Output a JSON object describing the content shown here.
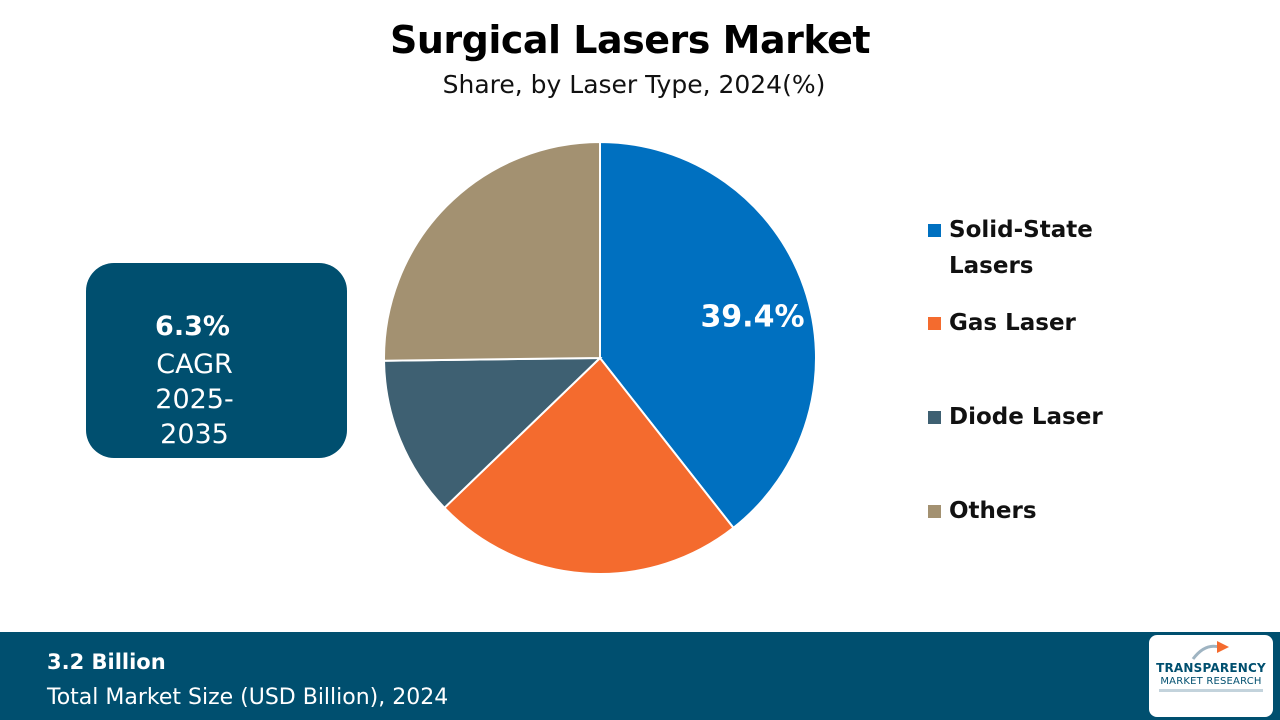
{
  "title": "Surgical Lasers Market",
  "subtitle": "Share, by Laser Type, 2024(%)",
  "cagr": {
    "value": "6.3%",
    "label_line1": "CAGR",
    "label_line2": "2025-",
    "label_line3": "2035"
  },
  "footer": {
    "value": "3.2 Billion",
    "label": "Total Market Size (USD Billion), 2024"
  },
  "logo": {
    "line1": "TRANSPARENCY",
    "line2": "MARKET RESEARCH"
  },
  "chart_data": {
    "type": "pie",
    "title": "Surgical Lasers Market",
    "subtitle": "Share, by Laser Type, 2024(%)",
    "legend_position": "right",
    "slices": [
      {
        "label": "Solid-State Lasers",
        "value": 39.4,
        "color": "#0070c0",
        "data_label": "39.4%"
      },
      {
        "label": "Gas Laser",
        "value": 23.4,
        "color": "#f46b2e",
        "data_label": ""
      },
      {
        "label": "Diode Laser",
        "value": 12.0,
        "color": "#3e6072",
        "data_label": ""
      },
      {
        "label": "Others",
        "value": 25.2,
        "color": "#a39171",
        "data_label": ""
      }
    ]
  },
  "legend": {
    "items": [
      {
        "label_line1": "Solid-State",
        "label_line2": "Lasers"
      },
      {
        "label_line1": "Gas Laser",
        "label_line2": ""
      },
      {
        "label_line1": "Diode Laser",
        "label_line2": ""
      },
      {
        "label_line1": "Others",
        "label_line2": ""
      }
    ]
  },
  "colors": {
    "brand": "#004f6f",
    "solid_state": "#0070c0",
    "gas": "#f46b2e",
    "diode": "#3e6072",
    "others": "#a39171"
  }
}
